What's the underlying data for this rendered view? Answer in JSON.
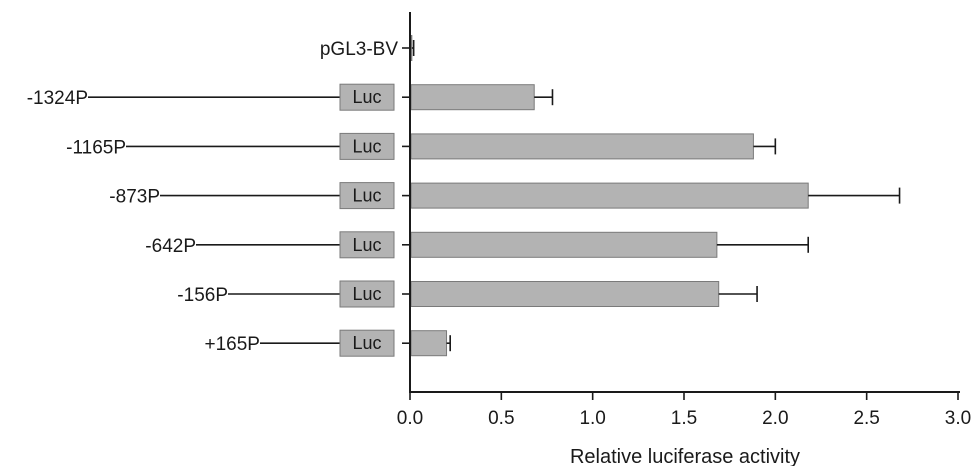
{
  "chart_data": {
    "type": "bar",
    "orientation": "horizontal",
    "categories": [
      "pGL3-BV",
      "-1324P",
      "-1165P",
      "-873P",
      "-642P",
      "-156P",
      "+165P"
    ],
    "values": [
      0.01,
      0.68,
      1.88,
      2.18,
      1.68,
      1.69,
      0.2
    ],
    "errors": [
      0.01,
      0.1,
      0.12,
      0.5,
      0.5,
      0.21,
      0.02
    ],
    "construct_label": "Luc",
    "construct_rows": [
      false,
      true,
      true,
      true,
      true,
      true,
      true
    ],
    "xlabel": "Relative luciferase activity",
    "xlim": [
      0,
      3.0
    ],
    "xticks": [
      "0.0",
      "0.5",
      "1.0",
      "1.5",
      "2.0",
      "2.5",
      "3.0"
    ],
    "grid": false,
    "colors": {
      "bar": "#b3b3b3",
      "bar_stroke": "#7a7a7a",
      "axis": "#1a1a1a",
      "line": "#1a1a1a"
    }
  }
}
